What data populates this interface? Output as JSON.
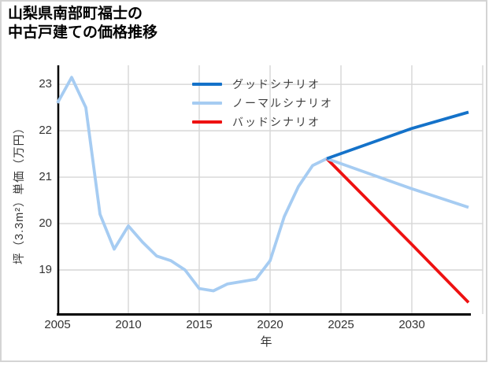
{
  "window": {
    "background": "#ffffff",
    "border_color": "#d4d4d4"
  },
  "chart_data": {
    "type": "line",
    "title": "山梨県南部町福士の中古戸建ての価格推移",
    "title_lines": [
      "山梨県南部町福士の",
      "中古戸建ての価格推移"
    ],
    "xlabel": "年",
    "ylabel": "坪（3.3m²）単価（万円）",
    "xlim": [
      2005,
      2035
    ],
    "ylim": [
      18.05,
      23.41
    ],
    "grid": true,
    "grid_color": "#d6d6d6",
    "axis_color": "#000000",
    "tick_color": "#333333",
    "xticks": {
      "values": [
        2005,
        2010,
        2015,
        2020,
        2025,
        2030
      ],
      "labels": [
        "2005",
        "2010",
        "2015",
        "2020",
        "2025",
        "2030"
      ]
    },
    "yticks": {
      "values": [
        19,
        20,
        21,
        22,
        23
      ],
      "labels": [
        "19",
        "20",
        "21",
        "22",
        "23"
      ]
    },
    "xgrid": [
      2010,
      2015,
      2020,
      2025,
      2030,
      2035
    ],
    "ygrid": [
      19,
      20,
      21,
      22,
      23
    ],
    "legend_position": "inside top, right of center",
    "legend_text_color": "#3d3d3d",
    "series": [
      {
        "key": "history",
        "label": null,
        "color": "#a6ccf2",
        "x": [
          2005,
          2006,
          2007,
          2008,
          2009,
          2010,
          2011,
          2012,
          2013,
          2014,
          2015,
          2016,
          2017,
          2018,
          2019,
          2020,
          2021,
          2022,
          2023,
          2024
        ],
        "y": [
          22.6,
          23.15,
          22.5,
          20.2,
          19.45,
          19.95,
          19.6,
          19.3,
          19.2,
          19.0,
          18.6,
          18.55,
          18.7,
          18.75,
          18.8,
          19.2,
          20.15,
          20.8,
          21.25,
          21.4
        ]
      },
      {
        "key": "good-scenario",
        "label": "グッドシナリオ",
        "color": "#1472c9",
        "x": [
          2024,
          2030,
          2034
        ],
        "y": [
          21.4,
          22.05,
          22.4
        ]
      },
      {
        "key": "normal-scenario",
        "label": "ノーマルシナリオ",
        "color": "#a6ccf2",
        "x": [
          2024,
          2030,
          2034
        ],
        "y": [
          21.4,
          20.75,
          20.35
        ]
      },
      {
        "key": "bad-scenario",
        "label": "バッドシナリオ",
        "color": "#ee1111",
        "x": [
          2024,
          2030,
          2034
        ],
        "y": [
          21.4,
          19.55,
          18.3
        ]
      }
    ]
  }
}
